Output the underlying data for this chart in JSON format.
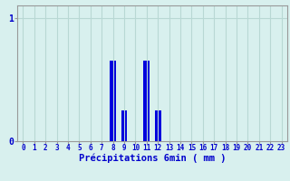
{
  "hours": [
    0,
    1,
    2,
    3,
    4,
    5,
    6,
    7,
    8,
    9,
    10,
    11,
    12,
    13,
    14,
    15,
    16,
    17,
    18,
    19,
    20,
    21,
    22,
    23
  ],
  "values": [
    0,
    0,
    0,
    0,
    0,
    0,
    0,
    0,
    0.65,
    0.25,
    0,
    0.65,
    0.25,
    0,
    0,
    0,
    0,
    0,
    0,
    0,
    0,
    0,
    0,
    0
  ],
  "bar_color": "#0000dd",
  "bg_color": "#d8f0ee",
  "grid_color": "#b8d8d4",
  "xlabel": "Précipitations 6min ( mm )",
  "xlabel_color": "#0000cc",
  "tick_color": "#0000cc",
  "yticks": [
    0,
    1
  ],
  "ylim": [
    0,
    1.1
  ],
  "xlim": [
    -0.5,
    23.5
  ],
  "bar_width": 0.55,
  "tick_fontsize": 5.5,
  "xlabel_fontsize": 7.5
}
